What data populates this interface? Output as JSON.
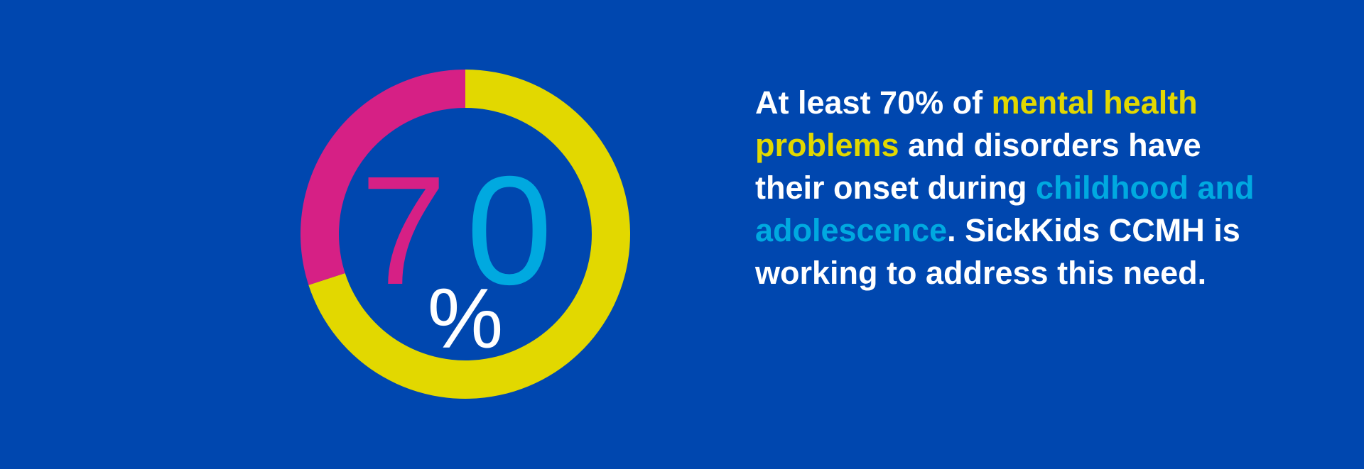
{
  "colors": {
    "background": "#0047AF",
    "highlight_yellow": "#E2D800",
    "highlight_magenta": "#D62085",
    "highlight_cyan": "#00A9E0",
    "text_white": "#FFFFFF"
  },
  "chart_data": {
    "type": "pie",
    "variant": "donut",
    "values": [
      70,
      30
    ],
    "slice_colors": [
      "#E2D800",
      "#D62085"
    ],
    "center_digits": [
      "7",
      "0"
    ],
    "center_symbol": "%"
  },
  "statement": {
    "segments": [
      {
        "text": "At least 70% of ",
        "color": "#FFFFFF"
      },
      {
        "text": "mental health problems",
        "color": "#E2D800"
      },
      {
        "text": " and disorders have their onset during ",
        "color": "#FFFFFF"
      },
      {
        "text": "childhood and adolescence",
        "color": "#00A9E0"
      },
      {
        "text": ". SickKids CCMH is working to address this need.",
        "color": "#FFFFFF"
      }
    ]
  }
}
